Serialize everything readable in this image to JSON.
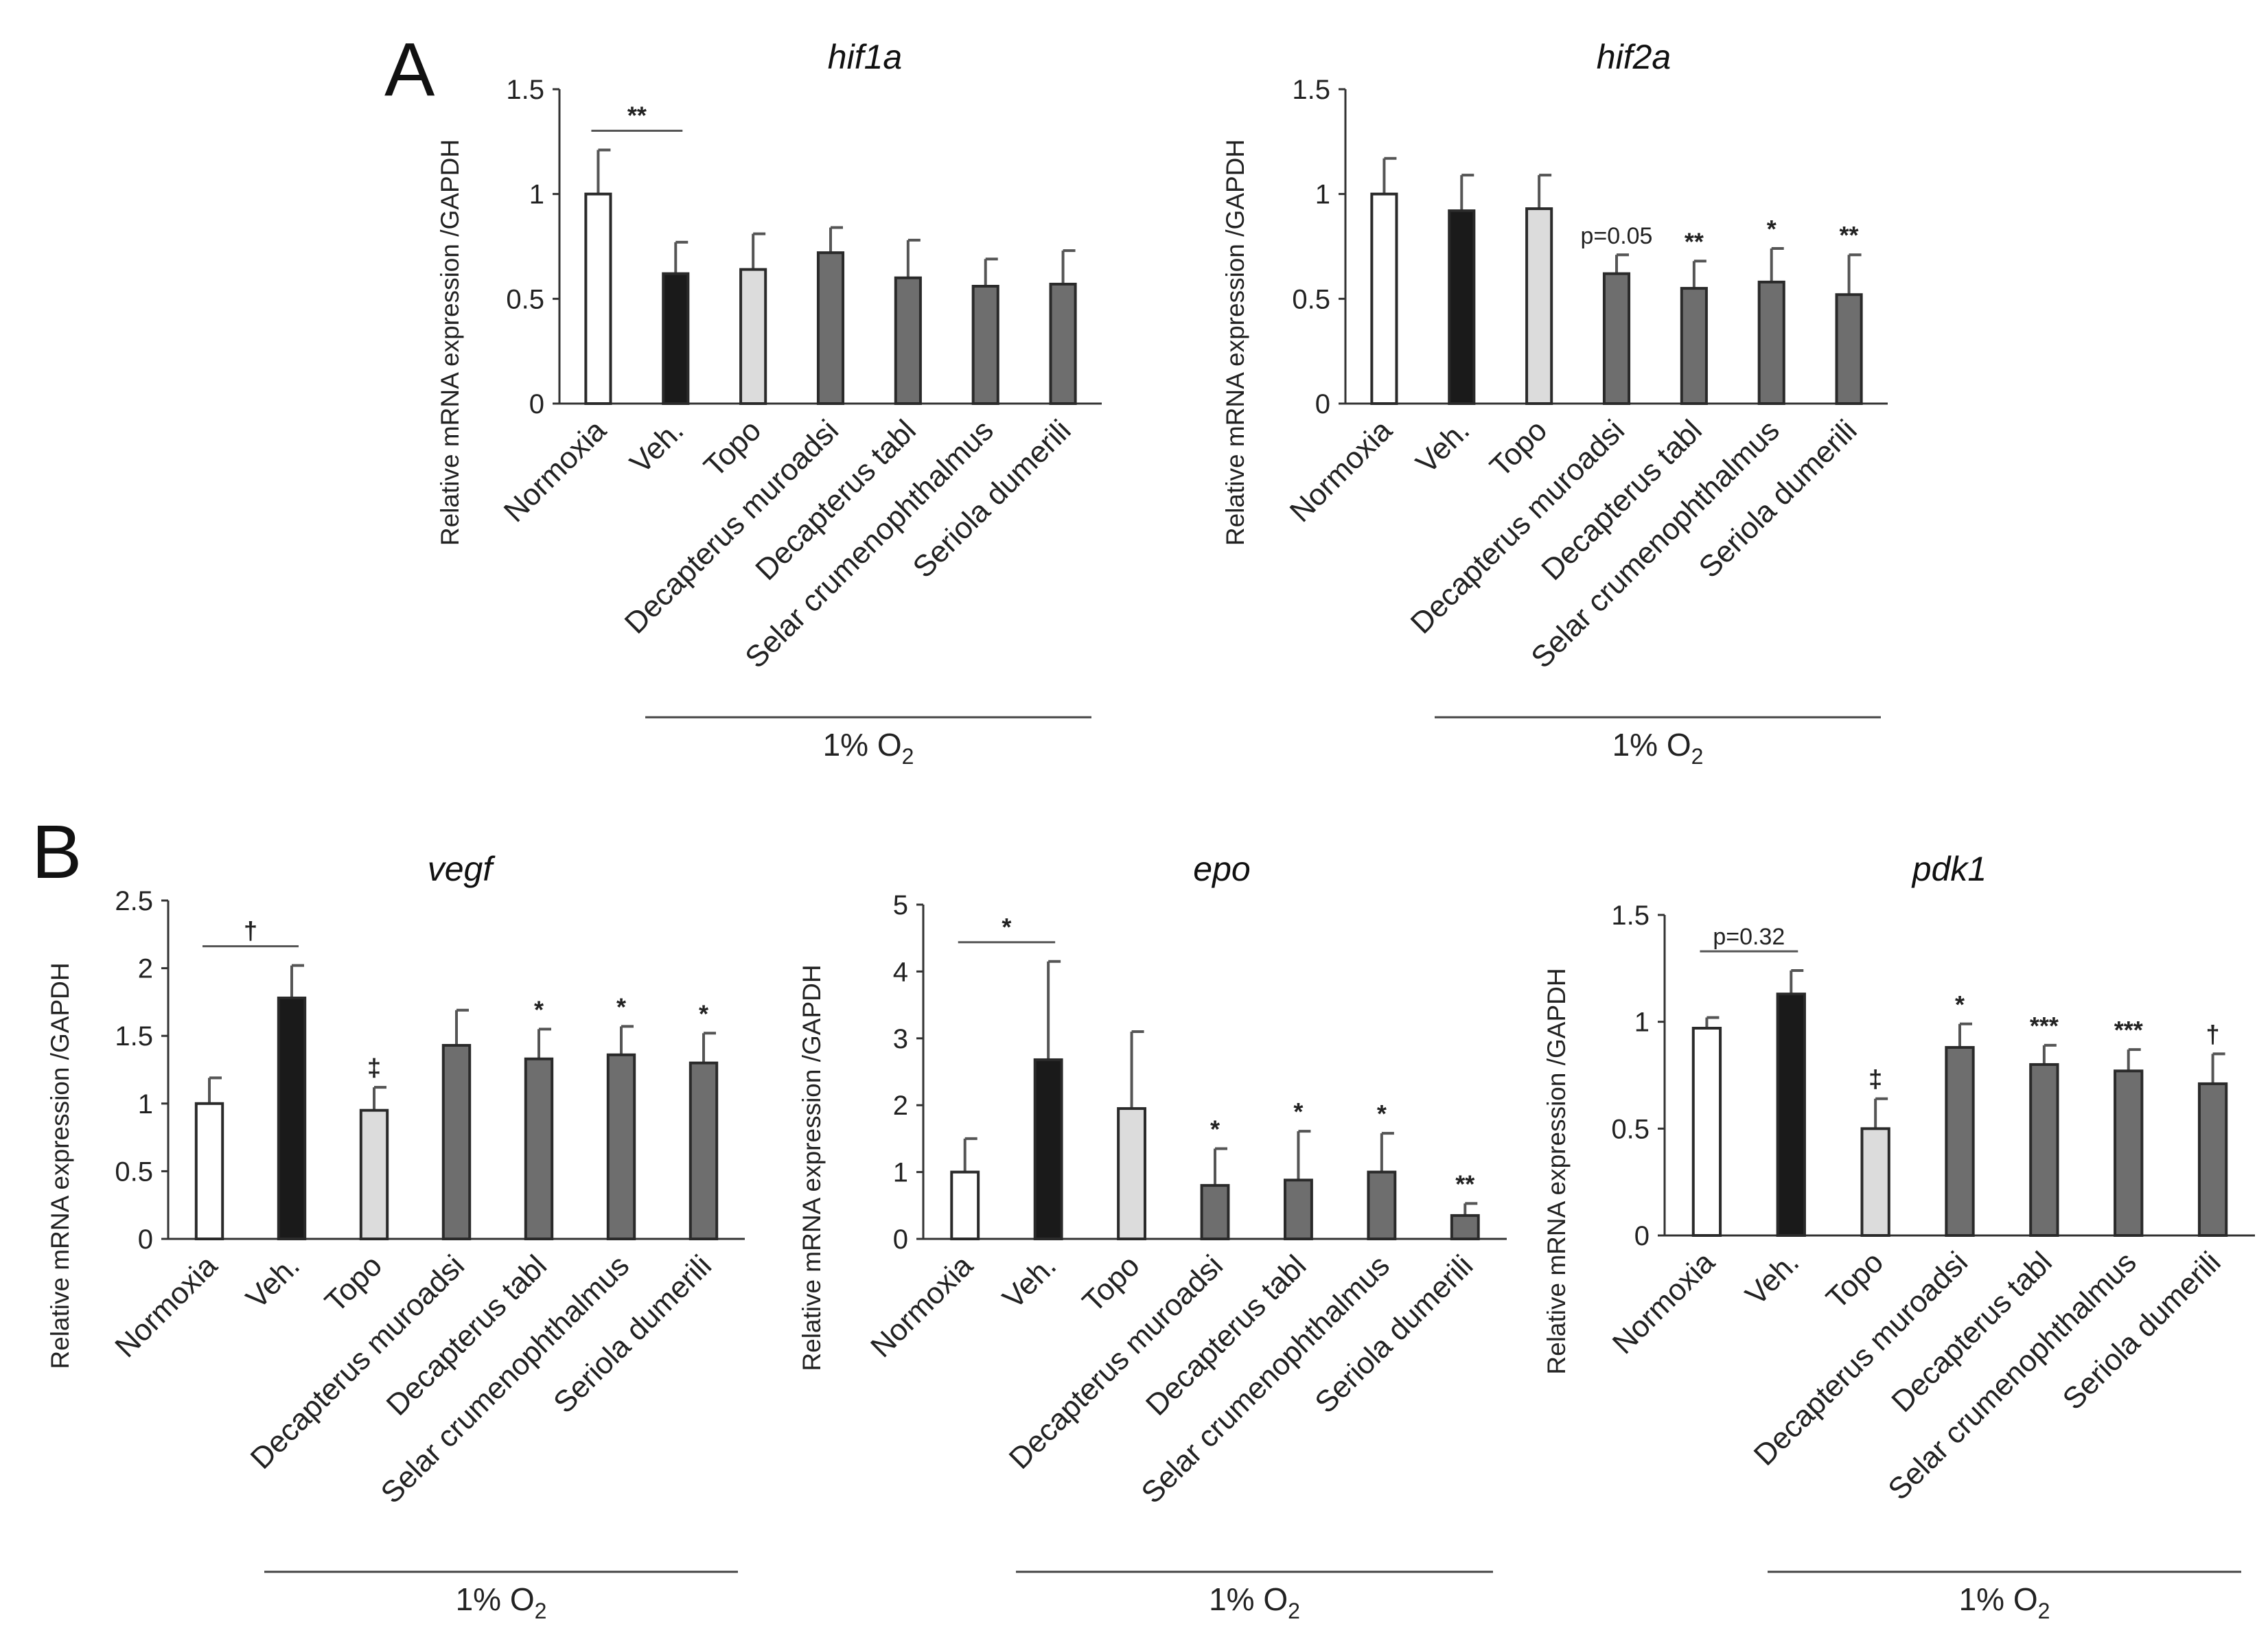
{
  "panels": [
    {
      "label": "A"
    },
    {
      "label": "B"
    }
  ],
  "chart_data": [
    {
      "type": "bar",
      "title": "hif1a",
      "ylabel": "Relative mRNA expression /GAPDH",
      "ylim": [
        0,
        1.5
      ],
      "yticks": [
        "0",
        "0.5",
        "1",
        "1.5"
      ],
      "categories": [
        "Normoxia",
        "Veh.",
        "Topo",
        "Decapterus muroadsi",
        "Decapterus tabl",
        "Selar crumenophthalmus",
        "Seriola dumerili"
      ],
      "values": [
        1.0,
        0.62,
        0.64,
        0.72,
        0.6,
        0.56,
        0.57
      ],
      "errors": [
        0.21,
        0.15,
        0.17,
        0.12,
        0.18,
        0.13,
        0.16
      ],
      "significance": [
        "",
        "",
        "",
        "",
        "",
        "",
        ""
      ],
      "bracket": {
        "from": 0,
        "to": 1,
        "label": "**"
      },
      "group_label": "1% O",
      "group_subscript": "2",
      "colors": [
        "#ffffff",
        "#1a1a1a",
        "#dcdcdc",
        "#6e6e6e",
        "#6e6e6e",
        "#6e6e6e",
        "#6e6e6e"
      ]
    },
    {
      "type": "bar",
      "title": "hif2a",
      "ylabel": "Relative mRNA expression /GAPDH",
      "ylim": [
        0,
        1.5
      ],
      "yticks": [
        "0",
        "0.5",
        "1",
        "1.5"
      ],
      "categories": [
        "Normoxia",
        "Veh.",
        "Topo",
        "Decapterus muroadsi",
        "Decapterus tabl",
        "Selar crumenophthalmus",
        "Seriola dumerili"
      ],
      "values": [
        1.0,
        0.92,
        0.93,
        0.62,
        0.55,
        0.58,
        0.52
      ],
      "errors": [
        0.17,
        0.17,
        0.16,
        0.09,
        0.13,
        0.16,
        0.19
      ],
      "significance": [
        "",
        "",
        "",
        "p=0.05",
        "**",
        "*",
        "**"
      ],
      "bracket": null,
      "group_label": "1% O",
      "group_subscript": "2",
      "colors": [
        "#ffffff",
        "#1a1a1a",
        "#dcdcdc",
        "#6e6e6e",
        "#6e6e6e",
        "#6e6e6e",
        "#6e6e6e"
      ]
    },
    {
      "type": "bar",
      "title": "vegf",
      "ylabel": "Relative mRNA expression /GAPDH",
      "ylim": [
        0,
        2.5
      ],
      "yticks": [
        "0",
        "0.5",
        "1",
        "1.5",
        "2",
        "2.5"
      ],
      "categories": [
        "Normoxia",
        "Veh.",
        "Topo",
        "Decapterus muroadsi",
        "Decapterus tabl",
        "Selar crumenophthalmus",
        "Seriola dumerili"
      ],
      "values": [
        1.0,
        1.78,
        0.95,
        1.43,
        1.33,
        1.36,
        1.3
      ],
      "errors": [
        0.19,
        0.24,
        0.17,
        0.26,
        0.22,
        0.21,
        0.22
      ],
      "significance": [
        "",
        "",
        "‡",
        "",
        "*",
        "*",
        "*"
      ],
      "bracket": {
        "from": 0,
        "to": 1,
        "label": "†"
      },
      "group_label": "1% O",
      "group_subscript": "2",
      "colors": [
        "#ffffff",
        "#1a1a1a",
        "#dcdcdc",
        "#6e6e6e",
        "#6e6e6e",
        "#6e6e6e",
        "#6e6e6e"
      ]
    },
    {
      "type": "bar",
      "title": "epo",
      "ylabel": "Relative mRNA expression /GAPDH",
      "ylim": [
        0,
        5
      ],
      "yticks": [
        "0",
        "1",
        "2",
        "3",
        "4",
        "5"
      ],
      "categories": [
        "Normoxia",
        "Veh.",
        "Topo",
        "Decapterus muroadsi",
        "Decapterus tabl",
        "Selar crumenophthalmus",
        "Seriola dumerili"
      ],
      "values": [
        1.0,
        2.68,
        1.95,
        0.8,
        0.88,
        1.0,
        0.35
      ],
      "errors": [
        0.5,
        1.47,
        1.15,
        0.55,
        0.73,
        0.58,
        0.18
      ],
      "significance": [
        "",
        "",
        "",
        "*",
        "*",
        "*",
        "**"
      ],
      "bracket": {
        "from": 0,
        "to": 1,
        "label": "*"
      },
      "group_label": "1% O",
      "group_subscript": "2",
      "colors": [
        "#ffffff",
        "#1a1a1a",
        "#dcdcdc",
        "#6e6e6e",
        "#6e6e6e",
        "#6e6e6e",
        "#6e6e6e"
      ]
    },
    {
      "type": "bar",
      "title": "pdk1",
      "ylabel": "Relative mRNA expression /GAPDH",
      "ylim": [
        0,
        1.5
      ],
      "yticks": [
        "0",
        "0.5",
        "1",
        "1.5"
      ],
      "categories": [
        "Normoxia",
        "Veh.",
        "Topo",
        "Decapterus muroadsi",
        "Decapterus tabl",
        "Selar crumenophthalmus",
        "Seriola dumerili"
      ],
      "values": [
        0.97,
        1.13,
        0.5,
        0.88,
        0.8,
        0.77,
        0.71
      ],
      "errors": [
        0.05,
        0.11,
        0.14,
        0.11,
        0.09,
        0.1,
        0.14
      ],
      "significance": [
        "",
        "",
        "‡",
        "*",
        "***",
        "***",
        "†"
      ],
      "bracket": {
        "from": 0,
        "to": 1,
        "label": "p=0.32"
      },
      "group_label": "1% O",
      "group_subscript": "2",
      "colors": [
        "#ffffff",
        "#1a1a1a",
        "#dcdcdc",
        "#6e6e6e",
        "#6e6e6e",
        "#6e6e6e",
        "#6e6e6e"
      ]
    }
  ]
}
